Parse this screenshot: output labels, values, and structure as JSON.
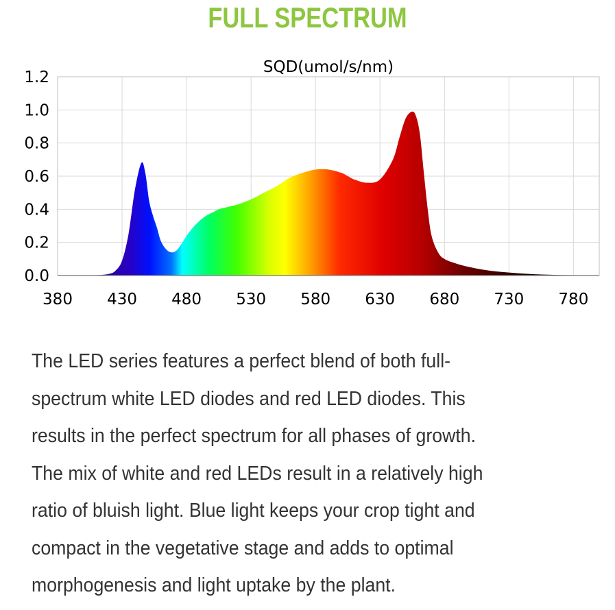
{
  "header": {
    "title": "FULL SPECTRUM"
  },
  "chart_data": {
    "type": "area",
    "title": "SQD(umol/s/nm)",
    "xlabel": "",
    "ylabel": "",
    "xlim": [
      380,
      800
    ],
    "ylim": [
      0,
      1.2
    ],
    "x_ticks": [
      "380",
      "430",
      "480",
      "530",
      "580",
      "630",
      "680",
      "730",
      "780"
    ],
    "y_ticks": [
      "0.0",
      "0.2",
      "0.4",
      "0.6",
      "0.8",
      "1.0",
      "1.2"
    ],
    "grid": true,
    "legend": "none",
    "fill": "wavelength-color gradient",
    "series": [
      {
        "x": [
          380,
          400,
          410,
          420,
          425,
          430,
          435,
          440,
          445,
          448,
          451,
          454,
          457,
          460,
          464,
          468,
          472,
          476,
          480,
          485,
          490,
          495,
          500,
          505,
          510,
          515,
          520,
          530,
          540,
          550,
          560,
          570,
          580,
          590,
          600,
          605,
          610,
          620,
          630,
          640,
          645,
          650,
          655,
          658,
          661,
          664,
          667,
          670,
          675,
          680,
          690,
          700,
          710,
          720,
          730,
          740,
          750,
          760,
          770,
          780,
          790,
          800
        ],
        "values": [
          0,
          0,
          0.002,
          0.01,
          0.03,
          0.09,
          0.25,
          0.52,
          0.68,
          0.62,
          0.45,
          0.36,
          0.29,
          0.21,
          0.16,
          0.14,
          0.15,
          0.19,
          0.24,
          0.29,
          0.33,
          0.36,
          0.38,
          0.4,
          0.41,
          0.42,
          0.43,
          0.46,
          0.5,
          0.54,
          0.59,
          0.62,
          0.64,
          0.64,
          0.62,
          0.6,
          0.58,
          0.56,
          0.58,
          0.7,
          0.83,
          0.95,
          0.99,
          0.96,
          0.85,
          0.62,
          0.4,
          0.24,
          0.14,
          0.1,
          0.07,
          0.05,
          0.035,
          0.025,
          0.018,
          0.012,
          0.008,
          0.005,
          0.003,
          0.002,
          0.001,
          0
        ]
      }
    ]
  },
  "description": {
    "lines": [
      "The LED series features a perfect blend of both full-",
      "spectrum white LED diodes and red LED diodes. This",
      "results in the perfect spectrum for all phases of growth.",
      "The mix of white and red LEDs result in a relatively high",
      "ratio of bluish light. Blue light keeps your crop tight and",
      "compact in the vegetative stage and adds to optimal",
      "morphogenesis and light uptake by the plant."
    ]
  }
}
